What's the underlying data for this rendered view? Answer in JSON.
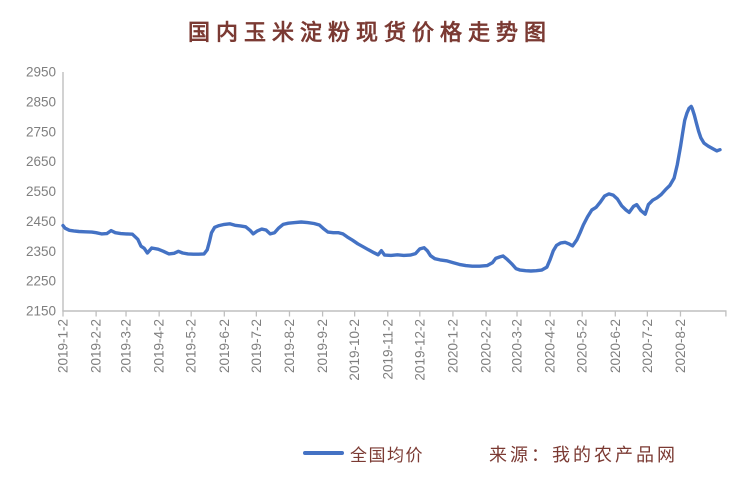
{
  "source_note": "来源：我的农产品网",
  "colors": {
    "background": "#FFFFFF",
    "accent_text": "#7B3A33",
    "line": "#4472C4",
    "axis_line": "#BFBFBF",
    "tick_label": "#7F7F7F"
  },
  "chart_data": {
    "type": "line",
    "title": "国内玉米淀粉现货价格走势图",
    "xlabel": "",
    "ylabel": "",
    "ylim": [
      2150,
      2950
    ],
    "y_ticks": [
      2150,
      2250,
      2350,
      2450,
      2550,
      2650,
      2750,
      2850,
      2950
    ],
    "x_tick_labels": [
      "2019-1-2",
      "2019-2-2",
      "2019-3-2",
      "2019-4-2",
      "2019-5-2",
      "2019-6-2",
      "2019-7-2",
      "2019-8-2",
      "2019-9-2",
      "2019-10-2",
      "2019-11-2",
      "2019-12-2",
      "2020-1-2",
      "2020-2-2",
      "2020-3-2",
      "2020-4-2",
      "2020-5-2",
      "2020-6-2",
      "2020-7-2",
      "2020-8-2"
    ],
    "x_range": [
      "2019-01-02",
      "2020-09-08"
    ],
    "grid": false,
    "legend_position": "bottom",
    "series": [
      {
        "name": "全国均价",
        "color": "#4472C4",
        "points": [
          [
            "2019-01-02",
            2436
          ],
          [
            "2019-01-04",
            2427
          ],
          [
            "2019-01-08",
            2420
          ],
          [
            "2019-01-12",
            2418
          ],
          [
            "2019-01-17",
            2416
          ],
          [
            "2019-01-23",
            2415
          ],
          [
            "2019-01-29",
            2414
          ],
          [
            "2019-02-02",
            2412
          ],
          [
            "2019-02-07",
            2408
          ],
          [
            "2019-02-12",
            2409
          ],
          [
            "2019-02-16",
            2419
          ],
          [
            "2019-02-20",
            2412
          ],
          [
            "2019-02-25",
            2409
          ],
          [
            "2019-03-02",
            2408
          ],
          [
            "2019-03-08",
            2407
          ],
          [
            "2019-03-13",
            2390
          ],
          [
            "2019-03-16",
            2367
          ],
          [
            "2019-03-19",
            2360
          ],
          [
            "2019-03-22",
            2344
          ],
          [
            "2019-03-26",
            2361
          ],
          [
            "2019-04-01",
            2357
          ],
          [
            "2019-04-06",
            2350
          ],
          [
            "2019-04-11",
            2341
          ],
          [
            "2019-04-16",
            2343
          ],
          [
            "2019-04-20",
            2350
          ],
          [
            "2019-04-24",
            2344
          ],
          [
            "2019-04-29",
            2341
          ],
          [
            "2019-05-04",
            2340
          ],
          [
            "2019-05-09",
            2340
          ],
          [
            "2019-05-14",
            2341
          ],
          [
            "2019-05-17",
            2355
          ],
          [
            "2019-05-19",
            2382
          ],
          [
            "2019-05-21",
            2412
          ],
          [
            "2019-05-24",
            2430
          ],
          [
            "2019-05-28",
            2436
          ],
          [
            "2019-06-02",
            2440
          ],
          [
            "2019-06-07",
            2442
          ],
          [
            "2019-06-12",
            2437
          ],
          [
            "2019-06-17",
            2435
          ],
          [
            "2019-06-22",
            2432
          ],
          [
            "2019-06-26",
            2420
          ],
          [
            "2019-06-29",
            2408
          ],
          [
            "2019-07-03",
            2418
          ],
          [
            "2019-07-07",
            2424
          ],
          [
            "2019-07-11",
            2421
          ],
          [
            "2019-07-15",
            2408
          ],
          [
            "2019-07-19",
            2412
          ],
          [
            "2019-07-23",
            2428
          ],
          [
            "2019-07-27",
            2440
          ],
          [
            "2019-08-01",
            2444
          ],
          [
            "2019-08-07",
            2446
          ],
          [
            "2019-08-13",
            2448
          ],
          [
            "2019-08-19",
            2446
          ],
          [
            "2019-08-25",
            2443
          ],
          [
            "2019-08-30",
            2438
          ],
          [
            "2019-09-03",
            2425
          ],
          [
            "2019-09-07",
            2414
          ],
          [
            "2019-09-12",
            2412
          ],
          [
            "2019-09-17",
            2412
          ],
          [
            "2019-09-21",
            2408
          ],
          [
            "2019-09-25",
            2398
          ],
          [
            "2019-09-30",
            2387
          ],
          [
            "2019-10-05",
            2375
          ],
          [
            "2019-10-10",
            2365
          ],
          [
            "2019-10-15",
            2355
          ],
          [
            "2019-10-20",
            2345
          ],
          [
            "2019-10-24",
            2338
          ],
          [
            "2019-10-27",
            2352
          ],
          [
            "2019-10-30",
            2337
          ],
          [
            "2019-11-05",
            2336
          ],
          [
            "2019-11-11",
            2338
          ],
          [
            "2019-11-17",
            2336
          ],
          [
            "2019-11-23",
            2337
          ],
          [
            "2019-11-28",
            2342
          ],
          [
            "2019-12-02",
            2358
          ],
          [
            "2019-12-06",
            2362
          ],
          [
            "2019-12-09",
            2352
          ],
          [
            "2019-12-12",
            2335
          ],
          [
            "2019-12-16",
            2325
          ],
          [
            "2019-12-21",
            2321
          ],
          [
            "2019-12-27",
            2318
          ],
          [
            "2020-01-02",
            2312
          ],
          [
            "2020-01-08",
            2306
          ],
          [
            "2020-01-14",
            2302
          ],
          [
            "2020-01-20",
            2300
          ],
          [
            "2020-01-27",
            2300
          ],
          [
            "2020-02-03",
            2302
          ],
          [
            "2020-02-08",
            2312
          ],
          [
            "2020-02-11",
            2326
          ],
          [
            "2020-02-15",
            2331
          ],
          [
            "2020-02-18",
            2334
          ],
          [
            "2020-02-22",
            2322
          ],
          [
            "2020-02-26",
            2308
          ],
          [
            "2020-03-01",
            2292
          ],
          [
            "2020-03-05",
            2287
          ],
          [
            "2020-03-10",
            2285
          ],
          [
            "2020-03-15",
            2284
          ],
          [
            "2020-03-20",
            2285
          ],
          [
            "2020-03-25",
            2287
          ],
          [
            "2020-03-30",
            2297
          ],
          [
            "2020-04-02",
            2322
          ],
          [
            "2020-04-05",
            2352
          ],
          [
            "2020-04-08",
            2370
          ],
          [
            "2020-04-12",
            2378
          ],
          [
            "2020-04-16",
            2380
          ],
          [
            "2020-04-20",
            2374
          ],
          [
            "2020-04-23",
            2368
          ],
          [
            "2020-04-27",
            2388
          ],
          [
            "2020-04-30",
            2412
          ],
          [
            "2020-05-03",
            2438
          ],
          [
            "2020-05-07",
            2465
          ],
          [
            "2020-05-11",
            2488
          ],
          [
            "2020-05-15",
            2497
          ],
          [
            "2020-05-19",
            2515
          ],
          [
            "2020-05-23",
            2535
          ],
          [
            "2020-05-27",
            2542
          ],
          [
            "2020-05-31",
            2538
          ],
          [
            "2020-06-04",
            2525
          ],
          [
            "2020-06-08",
            2502
          ],
          [
            "2020-06-12",
            2488
          ],
          [
            "2020-06-15",
            2480
          ],
          [
            "2020-06-19",
            2500
          ],
          [
            "2020-06-22",
            2506
          ],
          [
            "2020-06-26",
            2486
          ],
          [
            "2020-06-30",
            2474
          ],
          [
            "2020-07-03",
            2506
          ],
          [
            "2020-07-07",
            2521
          ],
          [
            "2020-07-11",
            2529
          ],
          [
            "2020-07-15",
            2540
          ],
          [
            "2020-07-19",
            2556
          ],
          [
            "2020-07-23",
            2570
          ],
          [
            "2020-07-27",
            2595
          ],
          [
            "2020-07-30",
            2640
          ],
          [
            "2020-08-02",
            2700
          ],
          [
            "2020-08-04",
            2745
          ],
          [
            "2020-08-06",
            2788
          ],
          [
            "2020-08-08",
            2812
          ],
          [
            "2020-08-10",
            2828
          ],
          [
            "2020-08-12",
            2835
          ],
          [
            "2020-08-13",
            2828
          ],
          [
            "2020-08-15",
            2805
          ],
          [
            "2020-08-17",
            2778
          ],
          [
            "2020-08-19",
            2752
          ],
          [
            "2020-08-21",
            2730
          ],
          [
            "2020-08-24",
            2712
          ],
          [
            "2020-08-28",
            2702
          ],
          [
            "2020-09-02",
            2692
          ],
          [
            "2020-09-05",
            2686
          ],
          [
            "2020-09-08",
            2690
          ]
        ]
      }
    ]
  }
}
